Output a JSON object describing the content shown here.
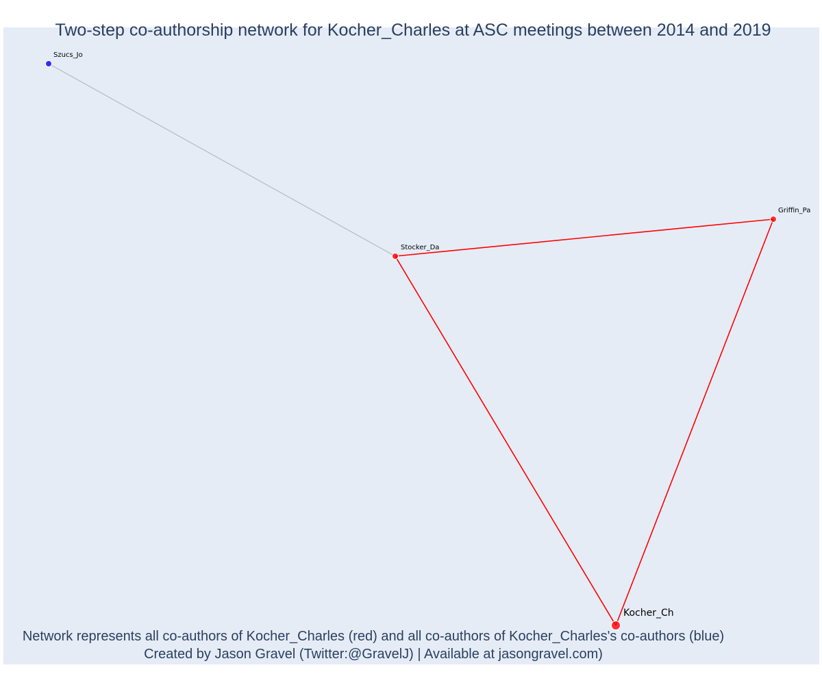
{
  "title": "Two-step co-authorship network for Kocher_Charles at ASC meetings between 2014 and 2019",
  "footer": {
    "line1": "Network represents all co-authors of Kocher_Charles (red) and all co-authors of Kocher_Charles's co-authors (blue)",
    "line2": "Created by Jason Gravel (Twitter:@GravelJ) | Available at jasongravel.com)"
  },
  "colors": {
    "background": "#e5ecf6",
    "direct": "#ff0000",
    "indirect": "#0000ff",
    "indirect_edge": "#b8b8c8",
    "text": "#2a3f5f"
  },
  "nodes": [
    {
      "id": "Kocher_Ch",
      "label": "Kocher_Ch",
      "group": "ego"
    },
    {
      "id": "Stocker_Da",
      "label": "Stocker_Da",
      "group": "direct"
    },
    {
      "id": "Griffin_Pa",
      "label": "Griffin_Pa",
      "group": "direct"
    },
    {
      "id": "Szucs_Jo",
      "label": "Szucs_Jo",
      "group": "indirect"
    }
  ],
  "edges": [
    {
      "source": "Kocher_Ch",
      "target": "Stocker_Da",
      "group": "direct"
    },
    {
      "source": "Kocher_Ch",
      "target": "Griffin_Pa",
      "group": "direct"
    },
    {
      "source": "Stocker_Da",
      "target": "Griffin_Pa",
      "group": "direct"
    },
    {
      "source": "Stocker_Da",
      "target": "Szucs_Jo",
      "group": "indirect"
    }
  ]
}
